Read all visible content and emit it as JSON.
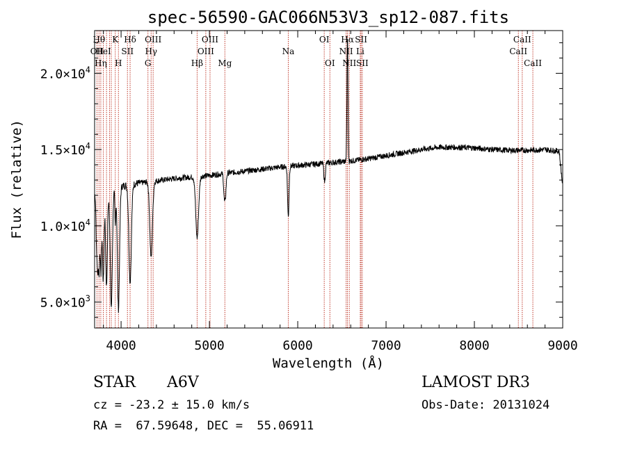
{
  "chart_data": {
    "type": "line",
    "title": "spec-56590-GAC066N53V3_sp12-087.fits",
    "xlabel": "Wavelength (Å)",
    "ylabel": "Flux (relative)",
    "xlim": [
      3700,
      9000
    ],
    "ylim": [
      3300,
      22800
    ],
    "grid": false,
    "x_ticks": [
      {
        "value": 4000,
        "label": "4000"
      },
      {
        "value": 5000,
        "label": "5000"
      },
      {
        "value": 6000,
        "label": "6000"
      },
      {
        "value": 7000,
        "label": "7000"
      },
      {
        "value": 8000,
        "label": "8000"
      },
      {
        "value": 9000,
        "label": "9000"
      }
    ],
    "y_ticks": [
      {
        "value": 5000,
        "mant": "5.0",
        "exp": "3"
      },
      {
        "value": 10000,
        "mant": "1.0",
        "exp": "4"
      },
      {
        "value": 15000,
        "mant": "1.5",
        "exp": "4"
      },
      {
        "value": 20000,
        "mant": "2.0",
        "exp": "4"
      }
    ],
    "continuum": [
      [
        3700,
        12000
      ],
      [
        3850,
        12300
      ],
      [
        4000,
        12600
      ],
      [
        4200,
        12800
      ],
      [
        4400,
        12950
      ],
      [
        4600,
        13100
      ],
      [
        4800,
        13200
      ],
      [
        5000,
        13300
      ],
      [
        5200,
        13450
      ],
      [
        5500,
        13650
      ],
      [
        5800,
        13850
      ],
      [
        6000,
        13950
      ],
      [
        6200,
        14050
      ],
      [
        6400,
        14150
      ],
      [
        6600,
        14250
      ],
      [
        6800,
        14400
      ],
      [
        7000,
        14600
      ],
      [
        7200,
        14800
      ],
      [
        7400,
        15000
      ],
      [
        7600,
        15150
      ],
      [
        7800,
        15150
      ],
      [
        8000,
        15100
      ],
      [
        8200,
        15000
      ],
      [
        8400,
        14950
      ],
      [
        8600,
        14950
      ],
      [
        8800,
        15000
      ],
      [
        8950,
        14900
      ],
      [
        9000,
        14800
      ]
    ],
    "absorption": [
      {
        "x": 3722,
        "depth": 3300,
        "width": 6
      },
      {
        "x": 3735,
        "depth": 4500,
        "width": 6
      },
      {
        "x": 3750,
        "depth": 5000,
        "width": 7
      },
      {
        "x": 3771,
        "depth": 5200,
        "width": 8
      },
      {
        "x": 3798,
        "depth": 5800,
        "width": 9
      },
      {
        "x": 3835,
        "depth": 6300,
        "width": 10
      },
      {
        "x": 3889,
        "depth": 7700,
        "width": 12
      },
      {
        "x": 3934,
        "depth": 2500,
        "width": 5
      },
      {
        "x": 3970,
        "depth": 8000,
        "width": 12
      },
      {
        "x": 4102,
        "depth": 6400,
        "width": 14
      },
      {
        "x": 4340,
        "depth": 5000,
        "width": 15
      },
      {
        "x": 4861,
        "depth": 4000,
        "width": 16
      },
      {
        "x": 5169,
        "depth": 1500,
        "width": 8
      },
      {
        "x": 5183,
        "depth": 1200,
        "width": 8
      },
      {
        "x": 5893,
        "depth": 3300,
        "width": 8
      },
      {
        "x": 6304,
        "depth": 1200,
        "width": 8
      }
    ],
    "emission": [
      {
        "x": 6563,
        "height": 8200,
        "width": 6
      }
    ],
    "line_markers": [
      {
        "x": 3727,
        "label": "OII",
        "row": 1
      },
      {
        "x": 3750,
        "label": "Hθ",
        "row": 0
      },
      {
        "x": 3770,
        "label": "Hη",
        "row": 2
      },
      {
        "x": 3799,
        "label": "HeI",
        "row": 1
      },
      {
        "x": 3835,
        "label": "",
        "row": 0
      },
      {
        "x": 3869,
        "label": "",
        "row": 0
      },
      {
        "x": 3889,
        "label": "",
        "row": 2
      },
      {
        "x": 3934,
        "label": "K",
        "row": 0
      },
      {
        "x": 3970,
        "label": "H",
        "row": 2
      },
      {
        "x": 4072,
        "label": "SII",
        "row": 1
      },
      {
        "x": 4102,
        "label": "Hδ",
        "row": 0
      },
      {
        "x": 4304,
        "label": "G",
        "row": 2
      },
      {
        "x": 4340,
        "label": "Hγ",
        "row": 1
      },
      {
        "x": 4363,
        "label": "OIII",
        "row": 0
      },
      {
        "x": 4861,
        "label": "Hβ",
        "row": 2
      },
      {
        "x": 4959,
        "label": "OIII",
        "row": 1
      },
      {
        "x": 5007,
        "label": "OIII",
        "row": 0
      },
      {
        "x": 5175,
        "label": "Mg",
        "row": 2
      },
      {
        "x": 5893,
        "label": "Na",
        "row": 1
      },
      {
        "x": 6300,
        "label": "OI",
        "row": 0
      },
      {
        "x": 6364,
        "label": "OI",
        "row": 2
      },
      {
        "x": 6548,
        "label": "NII",
        "row": 1
      },
      {
        "x": 6563,
        "label": "Hα",
        "row": 0
      },
      {
        "x": 6584,
        "label": "NII",
        "row": 2
      },
      {
        "x": 6708,
        "label": "Li",
        "row": 1
      },
      {
        "x": 6717,
        "label": "SII",
        "row": 0
      },
      {
        "x": 6731,
        "label": "SII",
        "row": 2
      },
      {
        "x": 8498,
        "label": "CaII",
        "row": 1
      },
      {
        "x": 8542,
        "label": "CaII",
        "row": 0
      },
      {
        "x": 8662,
        "label": "CaII",
        "row": 2
      }
    ],
    "line_color": "#000000",
    "marker_color": "#c0392b"
  },
  "footer": {
    "class_label": "STAR",
    "subclass": "A6V",
    "cz": "cz = -23.2 ± 15.0 km/s",
    "coords": "RA =  67.59648, DEC =  55.06911",
    "survey": "LAMOST DR3",
    "obs_date": "Obs-Date: 20131024"
  }
}
